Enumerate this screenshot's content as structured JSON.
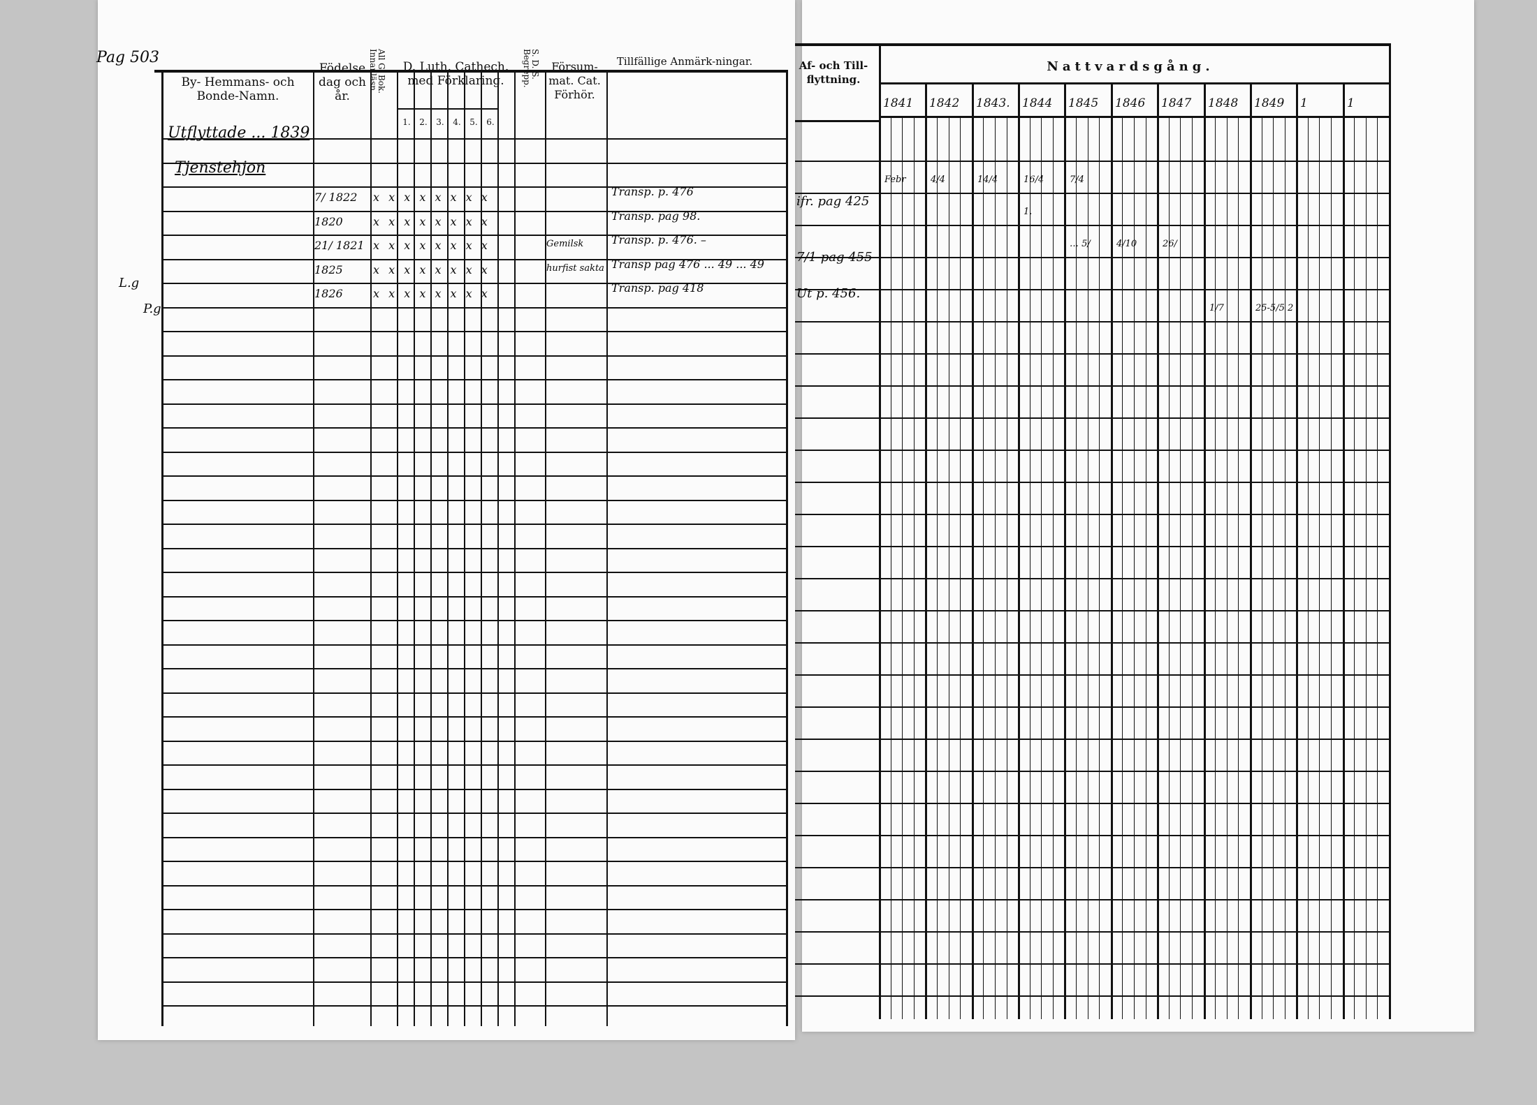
{
  "page_number": "Pag 503",
  "left": {
    "headers": {
      "name": "By- Hemmans- och Bonde-Namn.",
      "birth": "Födelse dag och år.",
      "allg": "All G. Bok. Innanläsn.",
      "cathech": "D. Luth. Cathech. med Förklaring.",
      "cathech_sub": [
        "1.",
        "2.",
        "3.",
        "4.",
        "5.",
        "6."
      ],
      "sds": "S. D. S. Begrepp.",
      "forsum": "Försum-mat. Cat. Förhör.",
      "remarks": "Tillfällige Anmärk-ningar."
    },
    "section_labels": [
      "Utflyttade ... 1839",
      "Tjenstehjon"
    ],
    "margin_notes": [
      "L.g",
      "P.g"
    ],
    "rows": [
      {
        "birth": "7/ 1822",
        "marks": "x x  x x x x x x",
        "forsum": "",
        "remark": "Transp. p. 476"
      },
      {
        "birth": "1820",
        "marks": "x x  x x x x x x",
        "forsum": "",
        "remark": "Transp. pag 98."
      },
      {
        "birth": "21/ 1821",
        "marks": "x x  x x x x x x",
        "forsum": "Gemilsk",
        "remark": "Transp. p. 476. –"
      },
      {
        "birth": "1825",
        "marks": "x x  x x x x x x",
        "forsum": "hurfist sakta",
        "remark": "Transp pag 476 ... 49 ... 49"
      },
      {
        "birth": "1826",
        "marks": "x x  x x x x x x",
        "forsum": "",
        "remark": "Transp. pag 418"
      }
    ]
  },
  "right": {
    "headers": {
      "moves": "Af- och Till-flyttning.",
      "communion": "Nattvardsgång."
    },
    "years": [
      "1841",
      "1842",
      "1843.",
      "1844",
      "1845",
      "1846",
      "1847",
      "1848",
      "1849",
      "1",
      "1"
    ],
    "moves": [
      "ifr. pag 425",
      "7/1 pag 455",
      "Ut p. 456."
    ],
    "communion_entries": [
      {
        "row": 1,
        "col": 0,
        "text": "Febr"
      },
      {
        "row": 1,
        "col": 1,
        "text": "4/4"
      },
      {
        "row": 1,
        "col": 2,
        "text": "14/4"
      },
      {
        "row": 1,
        "col": 3,
        "text": "16/4"
      },
      {
        "row": 1,
        "col": 4,
        "text": "7/4"
      },
      {
        "row": 2,
        "col": 3,
        "text": "1."
      },
      {
        "row": 3,
        "col": 4,
        "text": "… 5/"
      },
      {
        "row": 3,
        "col": 5,
        "text": "4/10"
      },
      {
        "row": 3,
        "col": 6,
        "text": "26/"
      },
      {
        "row": 5,
        "col": 7,
        "text": "1/7"
      },
      {
        "row": 5,
        "col": 8,
        "text": "25-5/5 2"
      }
    ]
  }
}
